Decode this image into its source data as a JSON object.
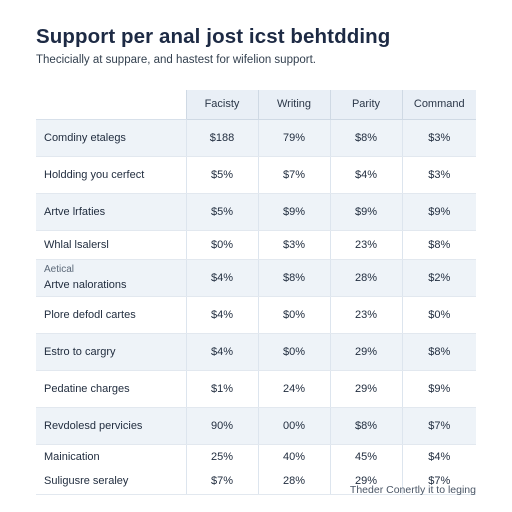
{
  "header": {
    "title": "Support per anal jost icst behtdding",
    "subtitle": "Thecicially at suppare, and hastest for wifelion support."
  },
  "table": {
    "columns": [
      "",
      "Facisty",
      "Writing",
      "Parity",
      "Command"
    ],
    "rows": [
      {
        "label": "Comdiny etalegs",
        "sublabel": "",
        "values": [
          "$188",
          "79%",
          "$8%",
          "$3%"
        ]
      },
      {
        "label": "Holdding you cerfect",
        "sublabel": "",
        "values": [
          "$5%",
          "$7%",
          "$4%",
          "$3%"
        ]
      },
      {
        "label": "Artve lrfaties",
        "sublabel": "",
        "values": [
          "$5%",
          "$9%",
          "$9%",
          "$9%"
        ]
      },
      {
        "label": "Whlal lsalersl",
        "sublabel": "",
        "values": [
          "$0%",
          "$3%",
          "23%",
          "$8%"
        ]
      },
      {
        "label": "Artve nalorations",
        "sublabel": "Aetical",
        "values": [
          "$4%",
          "$8%",
          "28%",
          "$2%"
        ]
      },
      {
        "label": "Plore defodl cartes",
        "sublabel": "",
        "values": [
          "$4%",
          "$0%",
          "23%",
          "$0%"
        ]
      },
      {
        "label": "Estro to cargry",
        "sublabel": "",
        "values": [
          "$4%",
          "$0%",
          "29%",
          "$8%"
        ]
      },
      {
        "label": "Pedatine charges",
        "sublabel": "",
        "values": [
          "$1%",
          "24%",
          "29%",
          "$9%"
        ]
      },
      {
        "label": "Revdolesd pervicies",
        "sublabel": "",
        "values": [
          "90%",
          "00%",
          "$8%",
          "$7%"
        ]
      },
      {
        "label": "Mainication",
        "sublabel": "",
        "values": [
          "25%",
          "40%",
          "45%",
          "$4%"
        ]
      },
      {
        "label": "Suligusre seraley",
        "sublabel": "",
        "values": [
          "$7%",
          "28%",
          "29%",
          "$7%"
        ]
      }
    ]
  },
  "footer": {
    "note": "Theder Conertly it to leging"
  }
}
